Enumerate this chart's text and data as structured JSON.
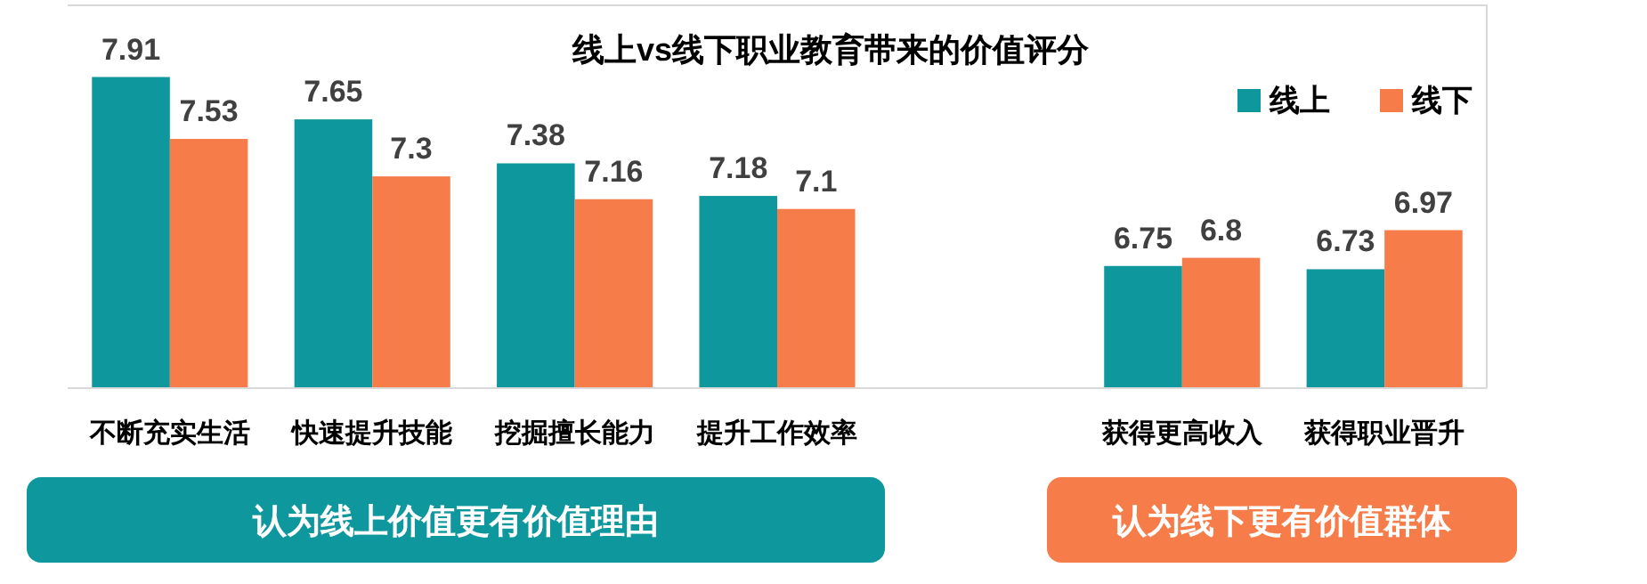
{
  "chart_data": {
    "type": "bar",
    "title": "线上vs线下职业教育带来的价值评分",
    "categories": [
      "不断充实生活",
      "快速提升技能",
      "挖掘擅长能力",
      "提升工作效率",
      null,
      "获得更高收入",
      "获得职业晋升"
    ],
    "series": [
      {
        "name": "线上",
        "color": "#0e979c",
        "values": [
          7.91,
          7.65,
          7.38,
          7.18,
          null,
          6.75,
          6.73
        ]
      },
      {
        "name": "线下",
        "color": "#f67c4a",
        "values": [
          7.53,
          7.3,
          7.16,
          7.1,
          null,
          6.8,
          6.97
        ]
      }
    ],
    "ylim": [
      6,
      8.35
    ],
    "tick_labels": "x",
    "data_labels": true,
    "legend": "top right",
    "grid": false,
    "annotations": [
      "认为线上价值更有价值理由",
      "认为线下更有价值群体"
    ]
  }
}
